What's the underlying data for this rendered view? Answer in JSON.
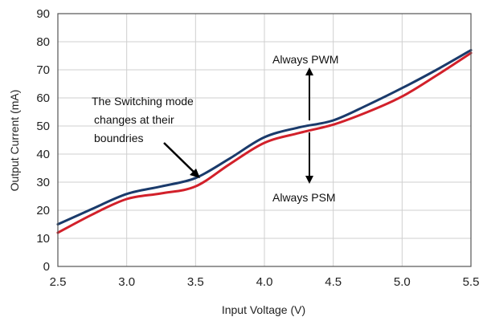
{
  "chart_data": {
    "type": "line",
    "xlabel": "Input Voltage (V)",
    "ylabel": "Output Current (mA)",
    "xlim": [
      2.5,
      5.5
    ],
    "ylim": [
      0,
      90
    ],
    "xticks": [
      "2.5",
      "3.0",
      "3.5",
      "4.0",
      "4.5",
      "5.0",
      "5.5"
    ],
    "yticks": [
      "0",
      "10",
      "20",
      "30",
      "40",
      "50",
      "60",
      "70",
      "80",
      "90"
    ],
    "grid": true,
    "legend": "none",
    "series": [
      {
        "color": "#1a3a6b",
        "x": [
          2.5,
          2.75,
          3.0,
          3.25,
          3.5,
          3.75,
          4.0,
          4.25,
          4.5,
          4.75,
          5.0,
          5.25,
          5.5
        ],
        "y": [
          15,
          20.5,
          25.8,
          28.5,
          31.5,
          38.5,
          46,
          49.5,
          52,
          57.5,
          63.5,
          70,
          77
        ]
      },
      {
        "color": "#d2202a",
        "x": [
          2.5,
          2.75,
          3.0,
          3.25,
          3.5,
          3.75,
          4.0,
          4.25,
          4.5,
          4.75,
          5.0,
          5.25,
          5.5
        ],
        "y": [
          12,
          18.5,
          24,
          26,
          28.5,
          36.5,
          44,
          47.5,
          50.5,
          55,
          60.5,
          68,
          76
        ]
      }
    ],
    "annotations": {
      "switching": [
        "The Switching mode",
        "changes at their",
        "boundries"
      ],
      "pwm": "Always PWM",
      "psm": "Always PSM"
    }
  }
}
